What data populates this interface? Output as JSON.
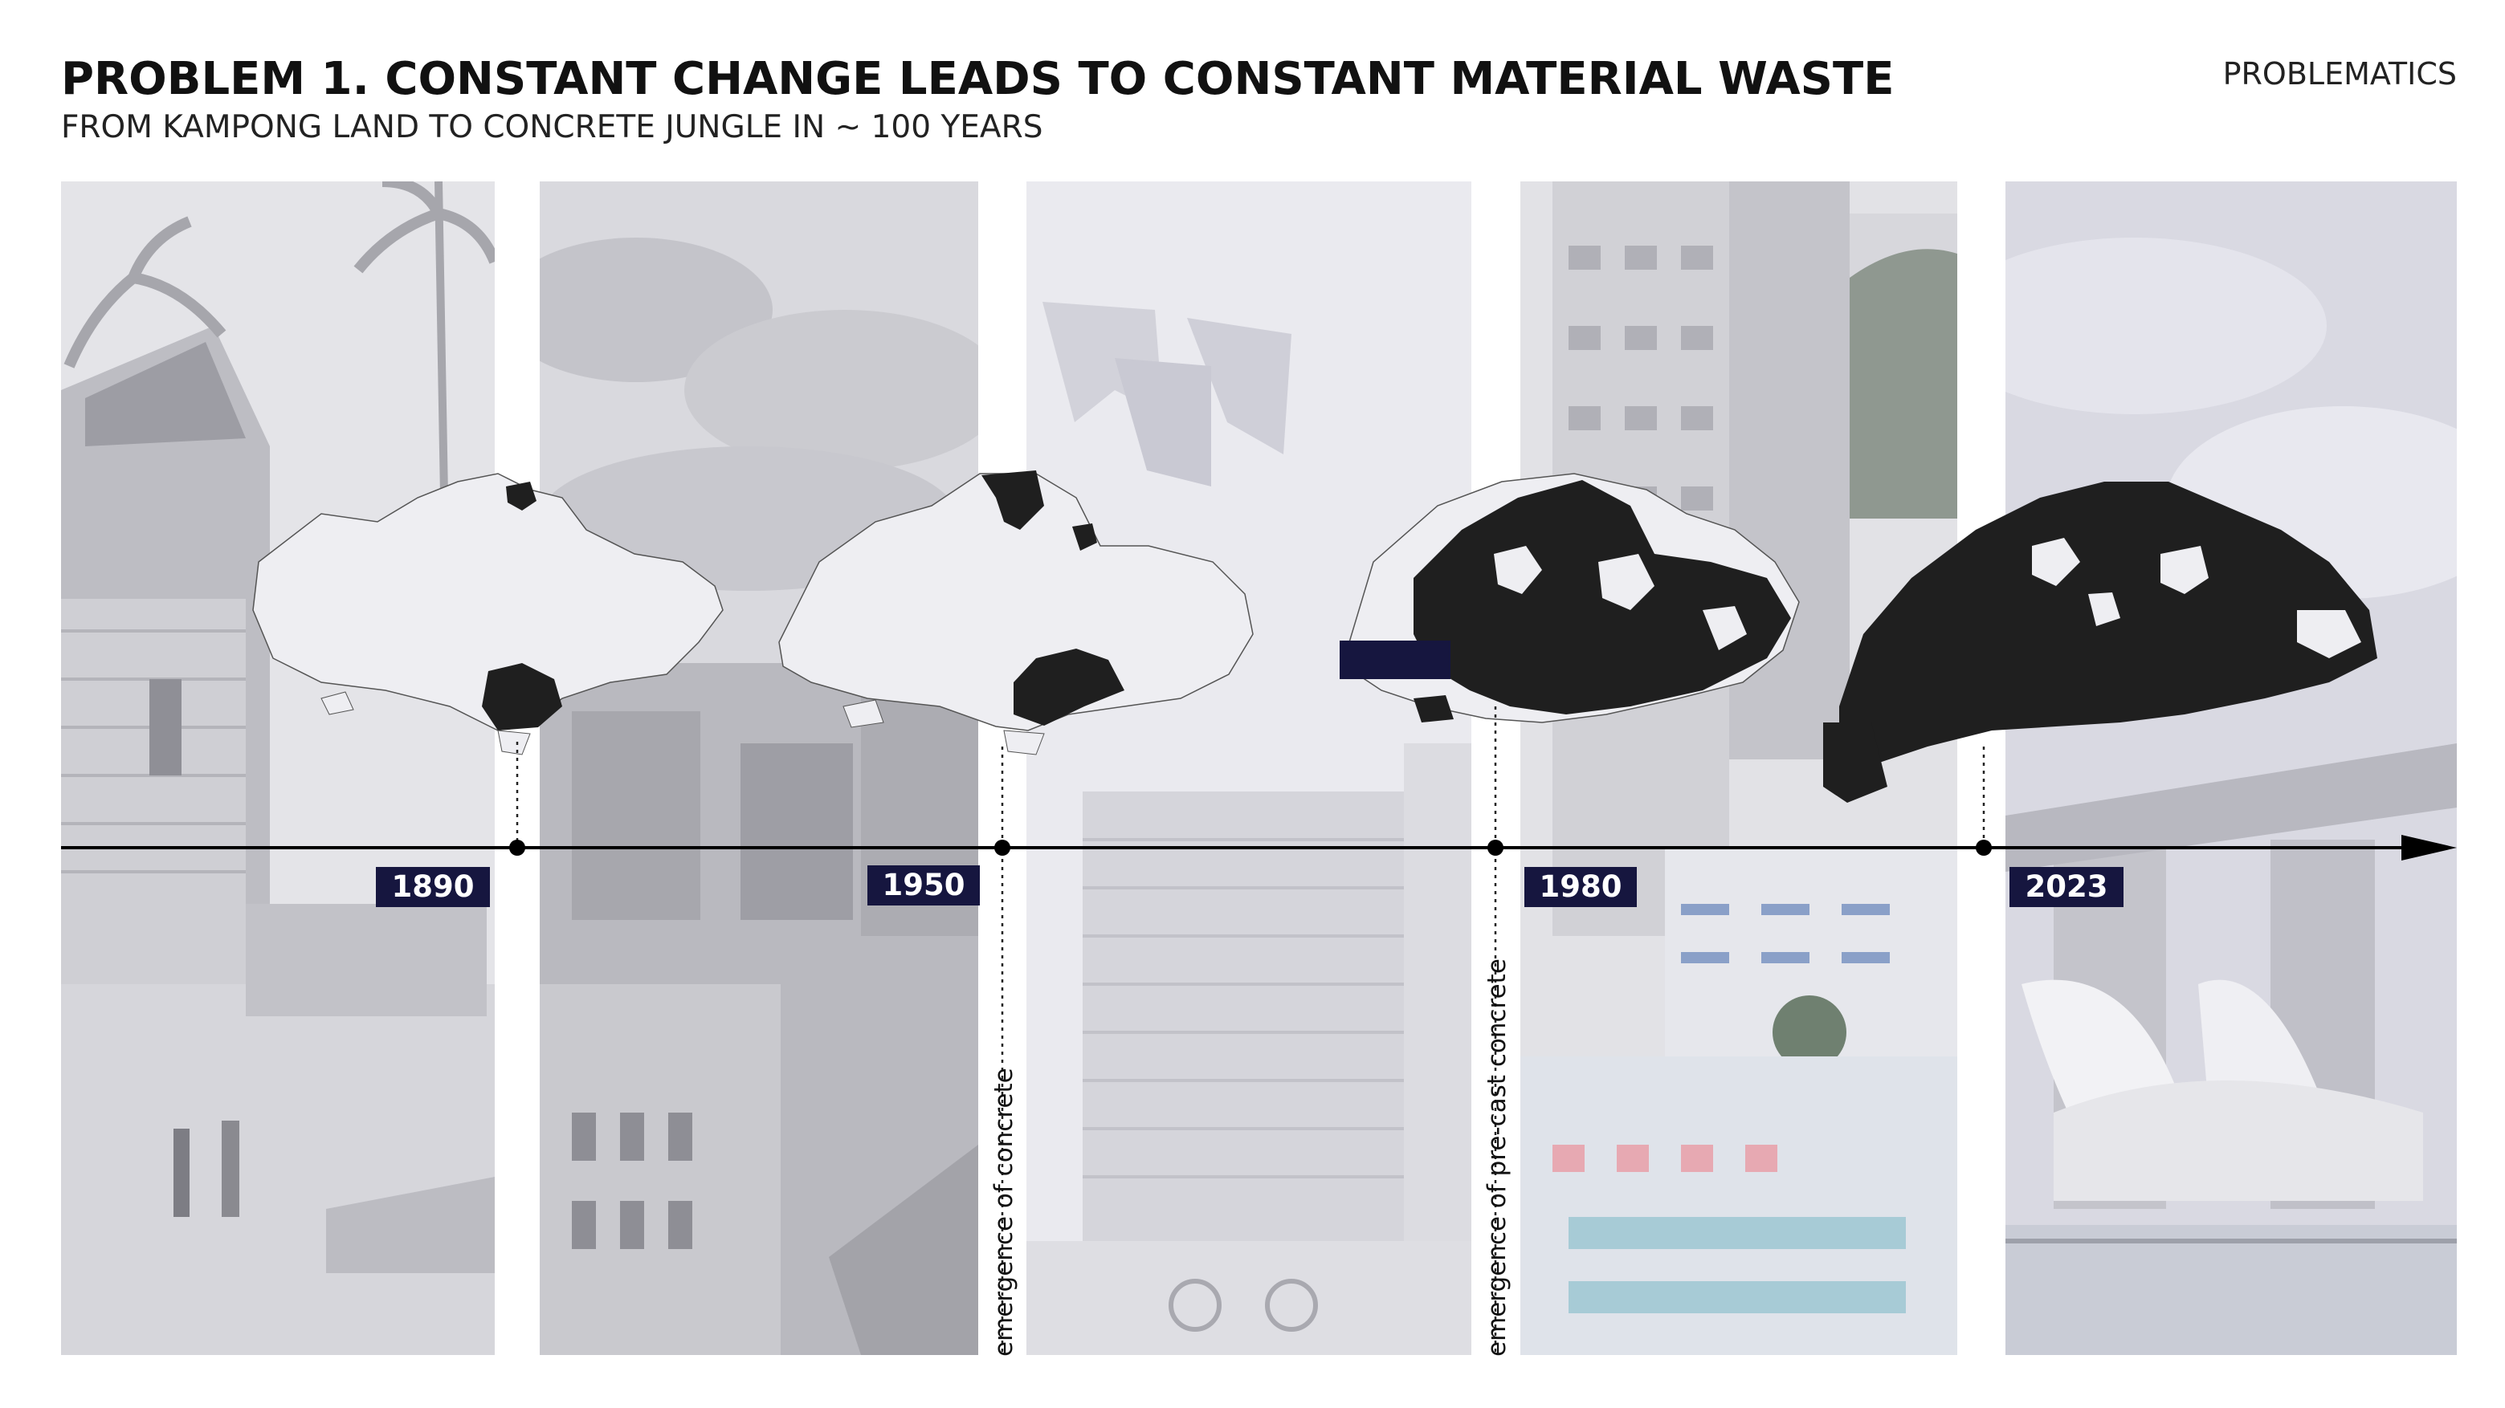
{
  "header": {
    "title": "PROBLEM 1. CONSTANT CHANGE LEADS TO CONSTANT MATERIAL WASTE",
    "subtitle": "FROM KAMPONG LAND TO CONCRETE JUNGLE IN ~ 100 YEARS",
    "section": "PROBLEMATICS"
  },
  "timeline": {
    "milestones": [
      {
        "year": "1890"
      },
      {
        "year": "1950"
      },
      {
        "year": "1980"
      },
      {
        "year": "2023"
      }
    ],
    "annotations": [
      {
        "text": "emergence of concrete"
      },
      {
        "text": "emergence of pre-cast concrete"
      }
    ]
  },
  "colors": {
    "badge": "#16163f",
    "urban_area": "#1f1f1f",
    "land": "#eeeef2",
    "axis": "#000000"
  }
}
